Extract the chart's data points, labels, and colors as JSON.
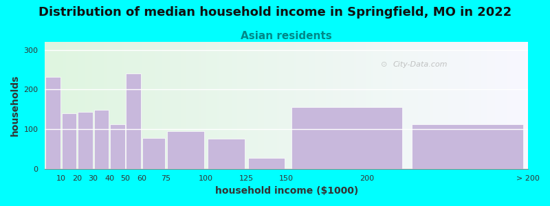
{
  "title": "Distribution of median household income in Springfield, MO in 2022",
  "subtitle": "Asian residents",
  "xlabel": "household income ($1000)",
  "ylabel": "households",
  "background_color": "#00FFFF",
  "bar_color": "#c8b8dc",
  "bar_edge_color": "#c8b8dc",
  "bin_lefts": [
    0,
    10,
    20,
    30,
    40,
    50,
    60,
    75,
    100,
    125,
    150,
    225
  ],
  "bin_widths": [
    10,
    10,
    10,
    10,
    10,
    10,
    15,
    25,
    25,
    25,
    75,
    75
  ],
  "values": [
    232,
    140,
    143,
    148,
    112,
    240,
    78,
    95,
    75,
    28,
    155,
    112
  ],
  "xtick_positions": [
    10,
    20,
    30,
    40,
    50,
    60,
    75,
    100,
    125,
    150,
    200,
    300
  ],
  "xtick_labels": [
    "10",
    "20",
    "30",
    "40",
    "50",
    "60",
    "75",
    "100",
    "125",
    "150",
    "200",
    "> 200"
  ],
  "ylim": [
    0,
    320
  ],
  "yticks": [
    0,
    100,
    200,
    300
  ],
  "watermark": "City-Data.com",
  "title_fontsize": 13,
  "subtitle_fontsize": 11,
  "axis_label_fontsize": 10,
  "tick_fontsize": 8
}
